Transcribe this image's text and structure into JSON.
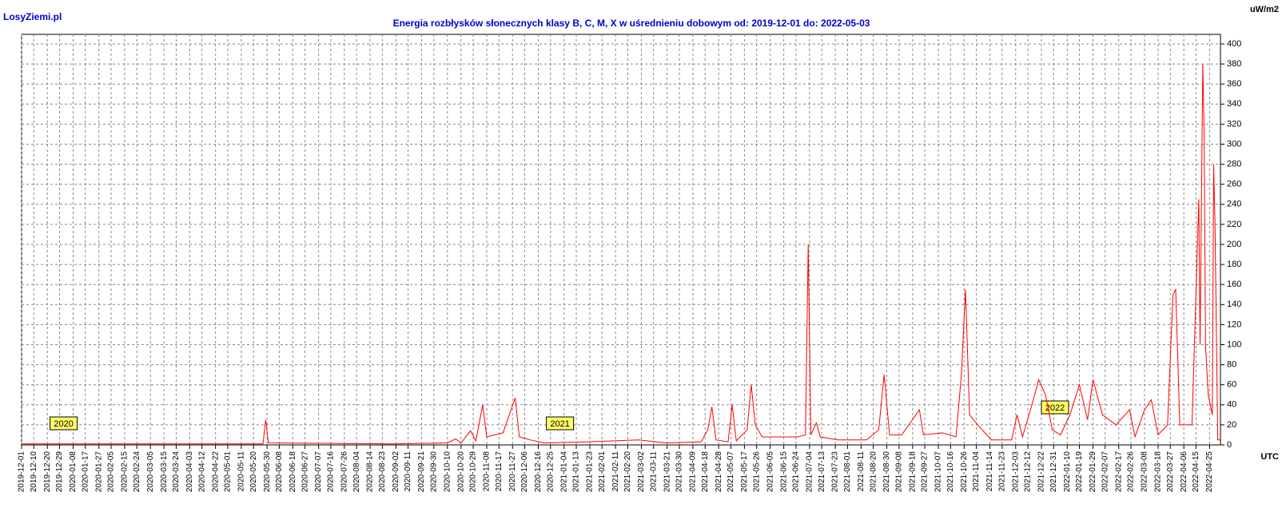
{
  "chart_data": {
    "type": "line",
    "title": "Energia rozbłysków słonecznych klasy B, C, M, X w uśrednieniu dobowym od: 2019-12-01 do: 2022-05-03",
    "brand": "LosyZiemi.pl",
    "y_unit": "uW/m2",
    "x_label": "UTC",
    "color": "#ff0000",
    "grid": true,
    "xlim": [
      "2019-12-01",
      "2022-05-03"
    ],
    "ylim": [
      0,
      400
    ],
    "yticks": [
      0,
      20,
      40,
      60,
      80,
      100,
      120,
      140,
      160,
      180,
      200,
      220,
      240,
      260,
      280,
      300,
      320,
      340,
      360,
      380,
      400
    ],
    "xticks": [
      "2019-12-01",
      "2019-12-10",
      "2019-12-20",
      "2019-12-29",
      "2020-01-08",
      "2020-01-17",
      "2020-01-27",
      "2020-02-05",
      "2020-02-15",
      "2020-02-24",
      "2020-03-05",
      "2020-03-15",
      "2020-03-24",
      "2020-04-03",
      "2020-04-12",
      "2020-04-22",
      "2020-05-01",
      "2020-05-11",
      "2020-05-20",
      "2020-05-30",
      "2020-06-08",
      "2020-06-18",
      "2020-06-27",
      "2020-07-07",
      "2020-07-16",
      "2020-07-26",
      "2020-08-04",
      "2020-08-14",
      "2020-08-23",
      "2020-09-02",
      "2020-09-11",
      "2020-09-21",
      "2020-09-30",
      "2020-10-10",
      "2020-10-20",
      "2020-10-29",
      "2020-11-08",
      "2020-11-17",
      "2020-11-27",
      "2020-12-06",
      "2020-12-16",
      "2020-12-25",
      "2021-01-04",
      "2021-01-13",
      "2021-01-23",
      "2021-02-01",
      "2021-02-11",
      "2021-02-20",
      "2021-03-02",
      "2021-03-11",
      "2021-03-21",
      "2021-03-30",
      "2021-04-09",
      "2021-04-18",
      "2021-04-28",
      "2021-05-07",
      "2021-05-17",
      "2021-05-26",
      "2021-06-05",
      "2021-06-15",
      "2021-06-24",
      "2021-07-04",
      "2021-07-13",
      "2021-07-23",
      "2021-08-01",
      "2021-08-11",
      "2021-08-20",
      "2021-08-30",
      "2021-09-08",
      "2021-09-18",
      "2021-09-27",
      "2021-10-07",
      "2021-10-16",
      "2021-10-26",
      "2021-11-04",
      "2021-11-14",
      "2021-11-23",
      "2021-12-03",
      "2021-12-12",
      "2021-12-22",
      "2021-12-31",
      "2022-01-10",
      "2022-01-19",
      "2022-01-29",
      "2022-02-07",
      "2022-02-17",
      "2022-02-26",
      "2022-03-08",
      "2022-03-18",
      "2022-03-27",
      "2022-04-06",
      "2022-04-15",
      "2022-04-25"
    ],
    "annotations": [
      {
        "text": "2020",
        "date": "2020-01-01"
      },
      {
        "text": "2021",
        "date": "2021-01-01"
      },
      {
        "text": "2022",
        "date": "2022-01-01"
      }
    ],
    "x": [
      "2019-12-01",
      "2020-03-01",
      "2020-05-27",
      "2020-05-29",
      "2020-05-31",
      "2020-09-01",
      "2020-10-10",
      "2020-10-16",
      "2020-10-20",
      "2020-10-27",
      "2020-10-31",
      "2020-11-05",
      "2020-11-08",
      "2020-11-20",
      "2020-11-29",
      "2020-12-02",
      "2020-12-10",
      "2020-12-20",
      "2021-01-20",
      "2021-02-28",
      "2021-03-20",
      "2021-04-15",
      "2021-04-20",
      "2021-04-23",
      "2021-04-26",
      "2021-05-05",
      "2021-05-08",
      "2021-05-11",
      "2021-05-19",
      "2021-05-22",
      "2021-05-25",
      "2021-05-30",
      "2021-06-10",
      "2021-06-25",
      "2021-07-01",
      "2021-07-03",
      "2021-07-05",
      "2021-07-09",
      "2021-07-12",
      "2021-07-25",
      "2021-08-15",
      "2021-08-24",
      "2021-08-28",
      "2021-09-01",
      "2021-09-10",
      "2021-09-23",
      "2021-09-26",
      "2021-10-10",
      "2021-10-20",
      "2021-10-24",
      "2021-10-27",
      "2021-10-30",
      "2021-11-05",
      "2021-11-15",
      "2021-11-30",
      "2021-12-04",
      "2021-12-08",
      "2021-12-15",
      "2021-12-20",
      "2021-12-25",
      "2021-12-30",
      "2022-01-05",
      "2022-01-12",
      "2022-01-19",
      "2022-01-25",
      "2022-01-29",
      "2022-02-05",
      "2022-02-15",
      "2022-02-25",
      "2022-03-01",
      "2022-03-08",
      "2022-03-13",
      "2022-03-18",
      "2022-03-25",
      "2022-03-29",
      "2022-03-31",
      "2022-04-03",
      "2022-04-12",
      "2022-04-17",
      "2022-04-18",
      "2022-04-20",
      "2022-04-21",
      "2022-04-22",
      "2022-04-24",
      "2022-04-27",
      "2022-04-28",
      "2022-04-29",
      "2022-05-01",
      "2022-05-03"
    ],
    "values": [
      1,
      1,
      1,
      25,
      2,
      1,
      2,
      6,
      2,
      14,
      4,
      40,
      8,
      12,
      47,
      8,
      5,
      2,
      3,
      5,
      2,
      3,
      15,
      38,
      5,
      3,
      40,
      4,
      15,
      60,
      20,
      8,
      8,
      8,
      10,
      200,
      10,
      22,
      8,
      5,
      5,
      15,
      70,
      10,
      10,
      35,
      10,
      12,
      8,
      70,
      155,
      30,
      20,
      5,
      5,
      30,
      8,
      40,
      65,
      50,
      15,
      10,
      30,
      60,
      25,
      65,
      30,
      20,
      35,
      8,
      35,
      45,
      10,
      20,
      150,
      155,
      20,
      20,
      245,
      100,
      380,
      310,
      100,
      50,
      30,
      280,
      220,
      5,
      5
    ]
  }
}
